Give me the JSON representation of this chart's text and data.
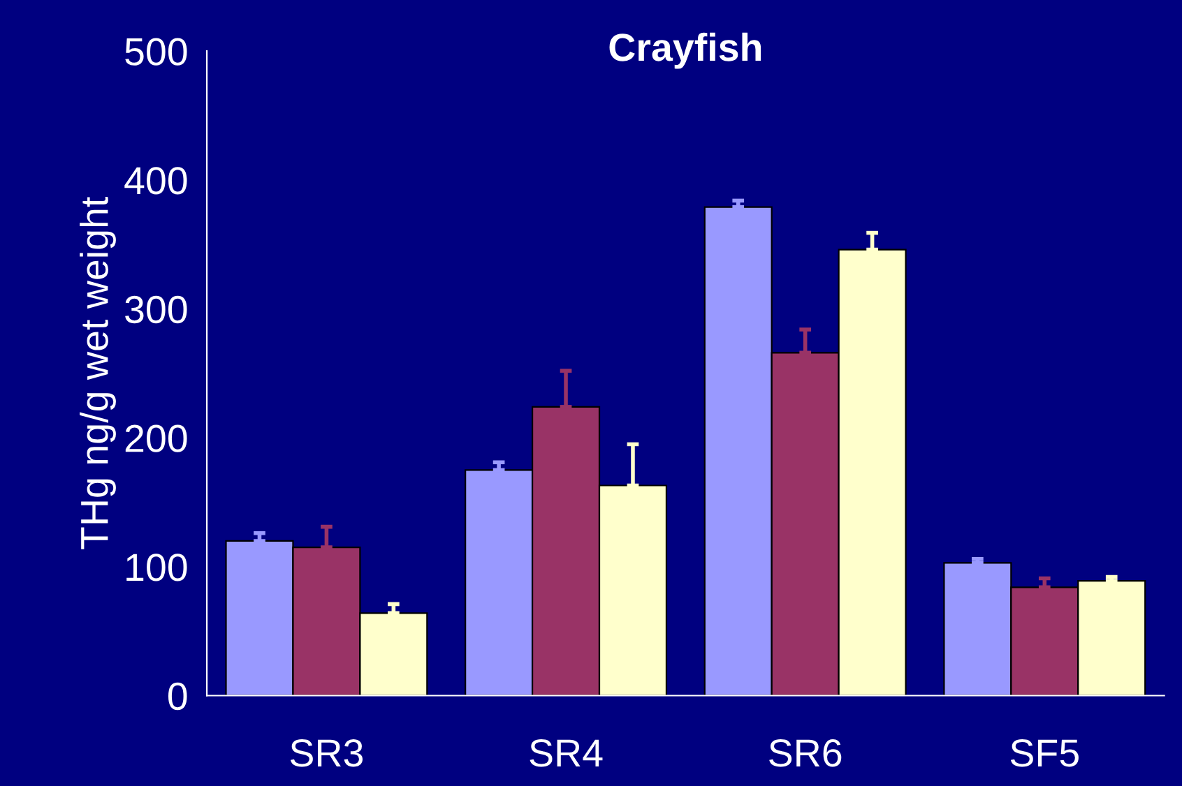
{
  "chart_data": {
    "type": "bar",
    "title": "Crayfish",
    "ylabel": "THg ng/g wet weight",
    "categories": [
      "SR3",
      "SR4",
      "SR6",
      "SF5"
    ],
    "series": [
      {
        "color": "#9999ff",
        "values": [
          120,
          175,
          379,
          103
        ],
        "errors": [
          [
            120,
            126
          ],
          [
            175,
            181
          ],
          [
            379,
            384
          ],
          [
            103,
            106
          ]
        ]
      },
      {
        "color": "#993366",
        "values": [
          115,
          224,
          266,
          84
        ],
        "errors": [
          [
            115,
            131
          ],
          [
            224,
            252
          ],
          [
            266,
            284
          ],
          [
            84,
            91
          ]
        ]
      },
      {
        "color": "#ffffcc",
        "values": [
          64,
          163,
          346,
          89
        ],
        "errors": [
          [
            64,
            71
          ],
          [
            163,
            195
          ],
          [
            346,
            359
          ],
          [
            89,
            92
          ]
        ]
      }
    ],
    "ylim": [
      0,
      500
    ],
    "yticks": [
      0,
      100,
      200,
      300,
      400,
      500
    ],
    "grid": false,
    "legend": false
  }
}
